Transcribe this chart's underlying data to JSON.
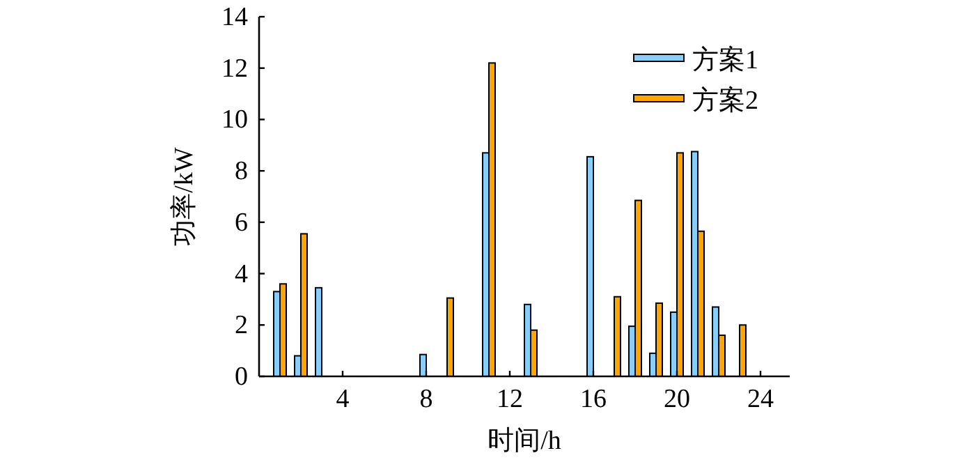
{
  "chart_data": {
    "type": "bar",
    "xlabel": "时间/h",
    "ylabel": "功率/kW",
    "x": [
      1,
      2,
      3,
      4,
      5,
      6,
      7,
      8,
      9,
      10,
      11,
      12,
      13,
      14,
      15,
      16,
      17,
      18,
      19,
      20,
      21,
      22,
      23,
      24
    ],
    "xlim": [
      0,
      25.4
    ],
    "xticks": [
      4,
      8,
      12,
      16,
      20,
      24
    ],
    "ylim": [
      0,
      14
    ],
    "yticks": [
      0,
      2,
      4,
      6,
      8,
      10,
      12,
      14
    ],
    "legend": "top right",
    "grid": false,
    "series": [
      {
        "name": "方案1",
        "color": "#87cefa",
        "values": [
          3.3,
          0.8,
          3.45,
          0,
          0,
          0,
          0,
          0.85,
          0,
          0,
          8.7,
          0,
          2.8,
          0,
          0,
          8.55,
          0,
          1.95,
          0.9,
          2.5,
          8.75,
          2.7,
          0,
          0
        ]
      },
      {
        "name": "方案2",
        "color": "#ffa500",
        "values": [
          3.6,
          5.55,
          0,
          0,
          0,
          0,
          0,
          0,
          3.05,
          0,
          12.2,
          0,
          1.8,
          0,
          0,
          0,
          3.1,
          6.85,
          2.85,
          8.7,
          5.65,
          1.6,
          2.0,
          0
        ]
      }
    ]
  }
}
